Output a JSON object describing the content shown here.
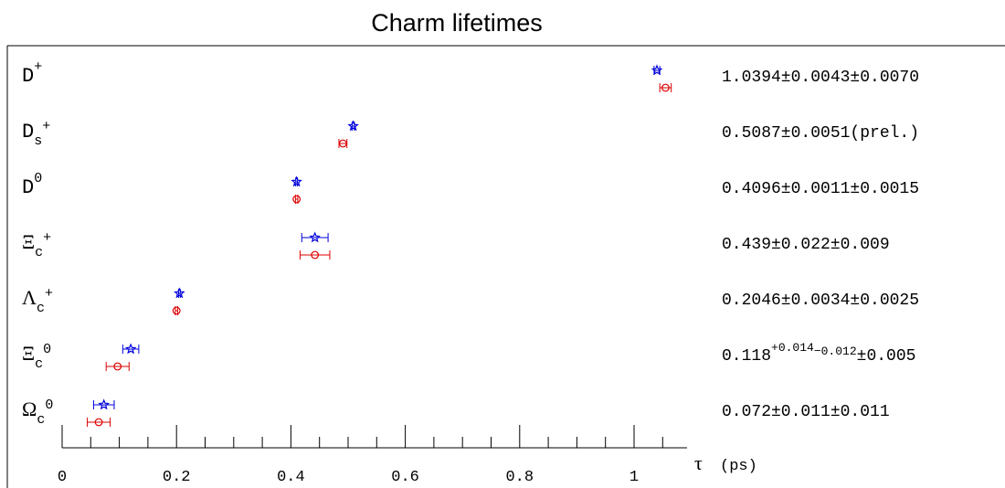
{
  "chart_data": {
    "type": "scatter",
    "title": "Charm lifetimes",
    "xlabel": "τ",
    "xunit": "(ps)",
    "xlim": [
      0,
      1.1
    ],
    "xticks": [
      "0",
      "0.2",
      "0.4",
      "0.6",
      "0.8",
      "1"
    ],
    "xtick_values": [
      0,
      0.2,
      0.4,
      0.6,
      0.8,
      1.0
    ],
    "grid": false,
    "colors": {
      "star_series": "#0000dd",
      "circle_series": "#dd0000",
      "axis": "#000000"
    },
    "particles": [
      {
        "name": "D",
        "sub": "",
        "sup": "+",
        "italic": false,
        "value_text": "1.0394±0.0043±0.0070",
        "star": {
          "x": 1.04,
          "err": 0.005
        },
        "circle": {
          "x": 1.055,
          "err": 0.01
        }
      },
      {
        "name": "D",
        "sub": "s",
        "sup": "+",
        "italic": false,
        "value_text": "0.5087±0.0051(prel.)",
        "star": {
          "x": 0.509,
          "err": 0.002
        },
        "circle": {
          "x": 0.491,
          "err": 0.007
        }
      },
      {
        "name": "D",
        "sub": "",
        "sup": "0",
        "italic": false,
        "value_text": "0.4096±0.0011±0.0015",
        "star": {
          "x": 0.41,
          "err": 0.0015
        },
        "circle": {
          "x": 0.41,
          "err": 0.002
        }
      },
      {
        "name": "Ξ",
        "sub": "c",
        "sup": "+",
        "italic": false,
        "value_text": "0.439±0.022±0.009",
        "star": {
          "x": 0.442,
          "err": 0.023
        },
        "circle": {
          "x": 0.442,
          "err": 0.026
        }
      },
      {
        "name": "Λ",
        "sub": "c",
        "sup": "+",
        "italic": false,
        "value_text": "0.2046±0.0034±0.0025",
        "star": {
          "x": 0.205,
          "err": 0.0015
        },
        "circle": {
          "x": 0.2,
          "err": 0.002
        }
      },
      {
        "name": "Ξ",
        "sub": "c",
        "sup": "0",
        "italic": false,
        "value_text_main": "0.118",
        "value_text_sup": "+0.014",
        "value_text_sub": "−0.012",
        "value_text_tail": "±0.005",
        "star": {
          "x": 0.12,
          "err": 0.014
        },
        "circle": {
          "x": 0.097,
          "err": 0.02
        }
      },
      {
        "name": "Ω",
        "sub": "c",
        "sup": "0",
        "italic": false,
        "value_text": "0.072±0.011±0.011",
        "star": {
          "x": 0.073,
          "err": 0.018
        },
        "circle": {
          "x": 0.064,
          "err": 0.02
        }
      }
    ]
  }
}
